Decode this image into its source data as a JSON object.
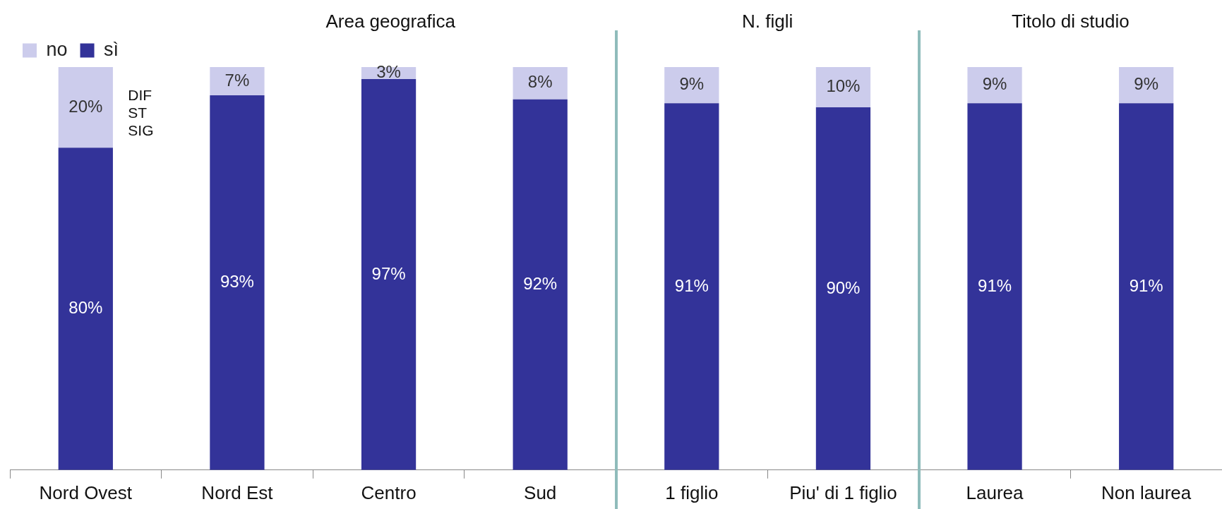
{
  "chart_data": {
    "type": "bar",
    "stacked": true,
    "categories": [
      "Nord Ovest",
      "Nord Est",
      "Centro",
      "Sud",
      "1 figlio",
      "Piu' di 1 figlio",
      "Laurea",
      "Non laurea"
    ],
    "series": [
      {
        "name": "sì",
        "color": "#333399",
        "values": [
          80,
          93,
          97,
          92,
          91,
          90,
          91,
          91
        ],
        "value_labels": [
          "80%",
          "93%",
          "97%",
          "92%",
          "91%",
          "90%",
          "91%",
          "91%"
        ]
      },
      {
        "name": "no",
        "color": "#ccccec",
        "values": [
          20,
          7,
          3,
          8,
          9,
          10,
          9,
          9
        ],
        "value_labels": [
          "20%",
          "7%",
          "3%",
          "8%",
          "9%",
          "10%",
          "9%",
          "9%"
        ]
      }
    ],
    "tick_labels": "x",
    "grid": false,
    "legend": "top left",
    "annotations": [
      "Area geografica",
      "N. figli",
      "Titolo di studio",
      {
        "text": "DIF ST SIG",
        "x": "Nord Ovest",
        "y": 80
      }
    ]
  }
}
